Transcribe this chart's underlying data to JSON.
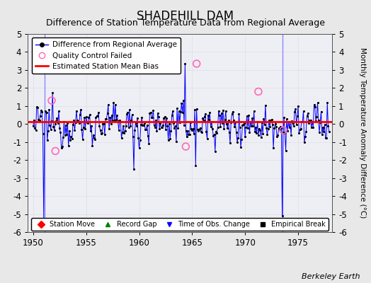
{
  "title": "SHADEHILL DAM",
  "subtitle": "Difference of Station Temperature Data from Regional Average",
  "ylabel_right": "Monthly Temperature Anomaly Difference (°C)",
  "xlim": [
    1949.5,
    1978.2
  ],
  "ylim": [
    -6,
    5
  ],
  "yticks": [
    -6,
    -5,
    -4,
    -3,
    -2,
    -1,
    0,
    1,
    2,
    3,
    4,
    5
  ],
  "xticks": [
    1950,
    1955,
    1960,
    1965,
    1970,
    1975
  ],
  "bias_value": 0.12,
  "vertical_lines": [
    1951.08,
    1973.5
  ],
  "vertical_line_color": "#8888ff",
  "qc_failed_x": [
    1951.75,
    1952.1,
    1964.4,
    1965.42,
    1971.25,
    1973.6
  ],
  "qc_failed_y": [
    1.3,
    -1.5,
    -1.25,
    3.35,
    1.8,
    -0.35
  ],
  "watermark": "Berkeley Earth",
  "background_color": "#e8e8e8",
  "plot_bg_color": "#eeeef5",
  "title_fontsize": 12,
  "subtitle_fontsize": 9,
  "seed": 12345
}
